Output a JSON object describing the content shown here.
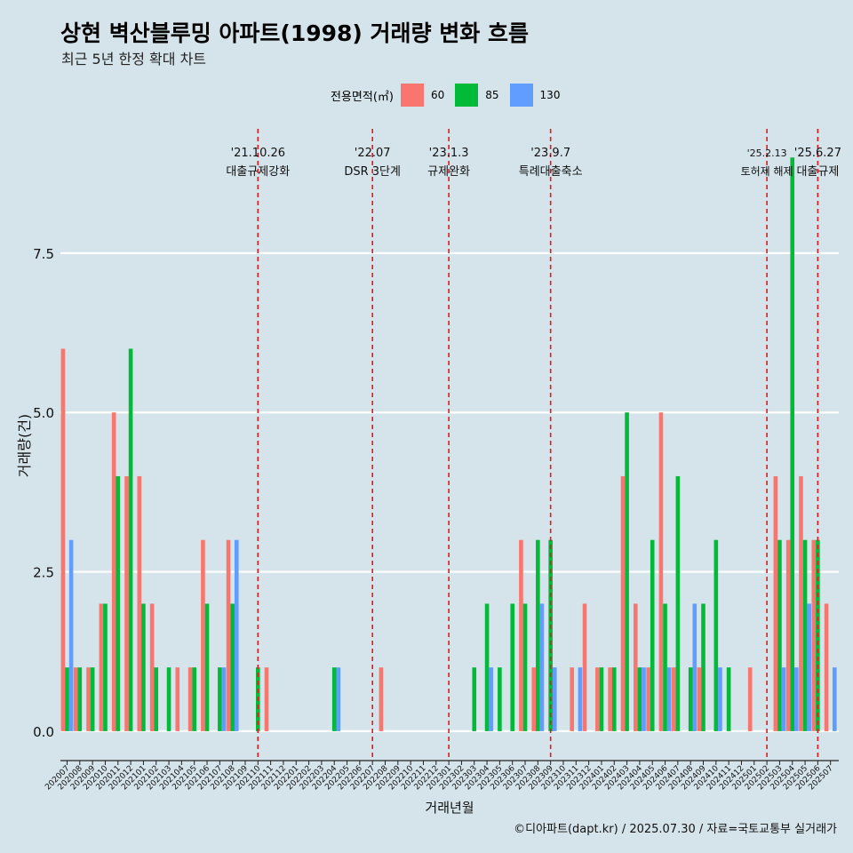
{
  "header": {
    "title": "상현 벽산블루밍 아파트(1998) 거래량 변화 흐름",
    "subtitle": "최근 5년 한정 확대 차트"
  },
  "legend": {
    "title": "전용면적(㎡)",
    "items": [
      {
        "label": "60",
        "color": "#f8766d"
      },
      {
        "label": "85",
        "color": "#00ba38"
      },
      {
        "label": "130",
        "color": "#619cff"
      }
    ]
  },
  "caption": "©디아파트(dapt.kr) / 2025.07.30 / 자료=국토교통부 실거래가",
  "chart_data": {
    "type": "bar",
    "xlabel": "거래년월",
    "ylabel": "거래량(건)",
    "ylim": [
      -0.35,
      9.45
    ],
    "yticks": [
      0.0,
      2.5,
      5.0,
      7.5
    ],
    "ytick_labels": [
      "0.0",
      "2.5",
      "5.0",
      "7.5"
    ],
    "grid": true,
    "legend_position": "top",
    "categories": [
      "202007",
      "202008",
      "202009",
      "202010",
      "202011",
      "202012",
      "202101",
      "202102",
      "202103",
      "202104",
      "202105",
      "202106",
      "202107",
      "202108",
      "202109",
      "202110",
      "202111",
      "202112",
      "202201",
      "202202",
      "202203",
      "202204",
      "202205",
      "202206",
      "202207",
      "202208",
      "202209",
      "202210",
      "202211",
      "202212",
      "202301",
      "202302",
      "202303",
      "202304",
      "202305",
      "202306",
      "202307",
      "202308",
      "202309",
      "202310",
      "202311",
      "202312",
      "202401",
      "202402",
      "202403",
      "202404",
      "202405",
      "202406",
      "202407",
      "202408",
      "202409",
      "202410",
      "202411",
      "202412",
      "202501",
      "202502",
      "202503",
      "202504",
      "202505",
      "202506",
      "202507"
    ],
    "series": [
      {
        "name": "60",
        "color": "#f8766d",
        "values": [
          6,
          1,
          1,
          2,
          5,
          4,
          4,
          2,
          0,
          1,
          1,
          3,
          0,
          3,
          0,
          0,
          1,
          0,
          0,
          0,
          0,
          0,
          0,
          0,
          0,
          1,
          0,
          0,
          0,
          0,
          0,
          0,
          0,
          0,
          0,
          0,
          3,
          1,
          0,
          0,
          1,
          2,
          1,
          1,
          4,
          2,
          1,
          5,
          1,
          0,
          1,
          0,
          0,
          0,
          1,
          0,
          4,
          3,
          4,
          3,
          2
        ]
      },
      {
        "name": "85",
        "color": "#00ba38",
        "values": [
          1,
          1,
          1,
          2,
          4,
          6,
          2,
          1,
          1,
          0,
          1,
          2,
          1,
          2,
          0,
          1,
          0,
          0,
          0,
          0,
          0,
          1,
          0,
          0,
          0,
          0,
          0,
          0,
          0,
          0,
          0,
          0,
          1,
          2,
          1,
          2,
          2,
          3,
          3,
          0,
          0,
          0,
          1,
          1,
          5,
          1,
          3,
          2,
          4,
          1,
          2,
          3,
          1,
          0,
          0,
          0,
          3,
          9,
          3,
          3,
          0
        ]
      },
      {
        "name": "130",
        "color": "#619cff",
        "values": [
          3,
          0,
          0,
          0,
          0,
          0,
          0,
          0,
          0,
          0,
          0,
          0,
          1,
          3,
          0,
          0,
          0,
          0,
          0,
          0,
          0,
          1,
          0,
          0,
          0,
          0,
          0,
          0,
          0,
          0,
          0,
          0,
          0,
          1,
          0,
          0,
          0,
          2,
          1,
          0,
          1,
          0,
          0,
          0,
          0,
          1,
          0,
          1,
          0,
          2,
          0,
          1,
          0,
          0,
          0,
          0,
          1,
          1,
          2,
          0,
          1
        ]
      }
    ],
    "annotations": [
      {
        "at": "202110",
        "date": "'21.10.26",
        "text": "대출규제강화"
      },
      {
        "at": "202207",
        "date": "'22.07",
        "text": "DSR 3단계"
      },
      {
        "at": "202301",
        "date": "'23.1.3",
        "text": "규제완화"
      },
      {
        "at": "202309",
        "date": "'23.9.7",
        "text": "특례대출축소"
      },
      {
        "at": "202502",
        "date": "'25.2.13",
        "text": "토허제 해제"
      },
      {
        "at": "202506",
        "date": "'25.6.27",
        "text": "대출규제"
      }
    ]
  }
}
